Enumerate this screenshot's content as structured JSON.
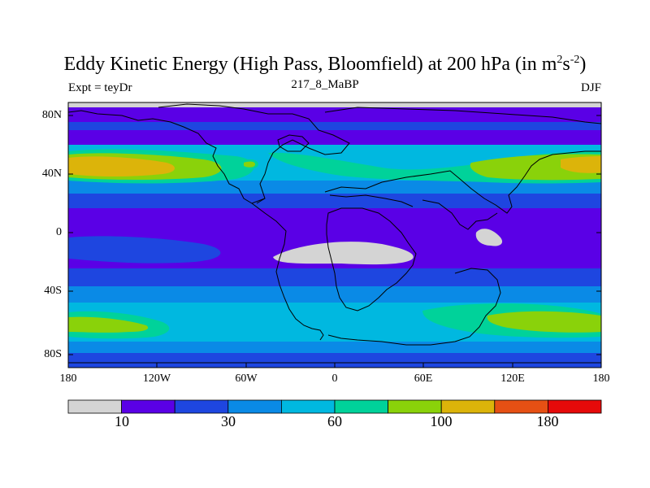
{
  "title": {
    "main": "Eddy Kinetic Energy (High Pass, Bloomfield) at 200 hPa (in m",
    "sup1": "2",
    "mid": "s",
    "sup2": "-2",
    "end": ")"
  },
  "subtitle": {
    "left": "Expt = teyDr",
    "center": "217_8_MaBP",
    "right": "DJF"
  },
  "axes": {
    "lat_labels": [
      "80N",
      "40N",
      "0",
      "40S",
      "80S"
    ],
    "lon_labels": [
      "180",
      "120W",
      "60W",
      "0",
      "60E",
      "120E",
      "180"
    ]
  },
  "colorbar": {
    "colors": [
      "#d4d4d4",
      "#5a00e6",
      "#1e46e0",
      "#0a8ae6",
      "#00b8e0",
      "#00d29a",
      "#8ad20a",
      "#dcb40a",
      "#e65014",
      "#e60a0a"
    ],
    "labels": [
      "10",
      "30",
      "60",
      "100",
      "180"
    ]
  },
  "map_colors": {
    "grey": "#d4d4d4",
    "violet": "#5a00e6",
    "blue": "#1e46e0",
    "midblue": "#0a8ae6",
    "cyan": "#00b8e0",
    "teal": "#00d29a",
    "lime": "#8ad20a",
    "gold": "#dcb40a",
    "coast": "#000000"
  }
}
